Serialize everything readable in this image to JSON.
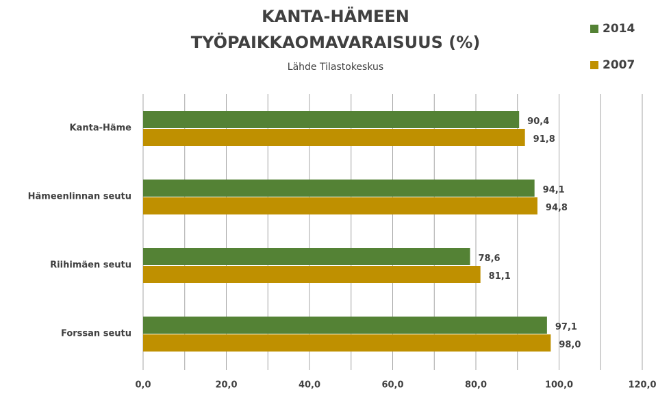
{
  "chart_data": {
    "type": "hbar",
    "title": [
      "KANTA-HÄMEEN",
      "TYÖPAIKKAOMAVARAISUUS (%)"
    ],
    "subtitle": "Lähde Tilastokeskus",
    "categories": [
      "Kanta-Häme",
      "Hämeenlinnan seutu",
      "Riihimäen seutu",
      "Forssan seutu"
    ],
    "series": [
      {
        "name": "2014",
        "color": "#548235",
        "values": [
          90.4,
          94.1,
          78.6,
          97.1
        ],
        "value_labels": [
          "90,4",
          "94,1",
          "78,6",
          "97,1"
        ]
      },
      {
        "name": "2007",
        "color": "#bf9000",
        "values": [
          91.8,
          94.8,
          81.1,
          98.0
        ],
        "value_labels": [
          "91,8",
          "94,8",
          "81,1",
          "98,0"
        ]
      }
    ],
    "xlim": [
      0,
      120
    ],
    "xticks": [
      {
        "value": 0,
        "label": "0,0"
      },
      {
        "value": 20,
        "label": "20,0"
      },
      {
        "value": 40,
        "label": "40,0"
      },
      {
        "value": 60,
        "label": "60,0"
      },
      {
        "value": 80,
        "label": "80,0"
      },
      {
        "value": 100,
        "label": "100,0"
      },
      {
        "value": 120,
        "label": "120,0"
      }
    ],
    "xminor": [
      10,
      30,
      50,
      70,
      90,
      110
    ],
    "grid": true,
    "legend": "top-right"
  }
}
